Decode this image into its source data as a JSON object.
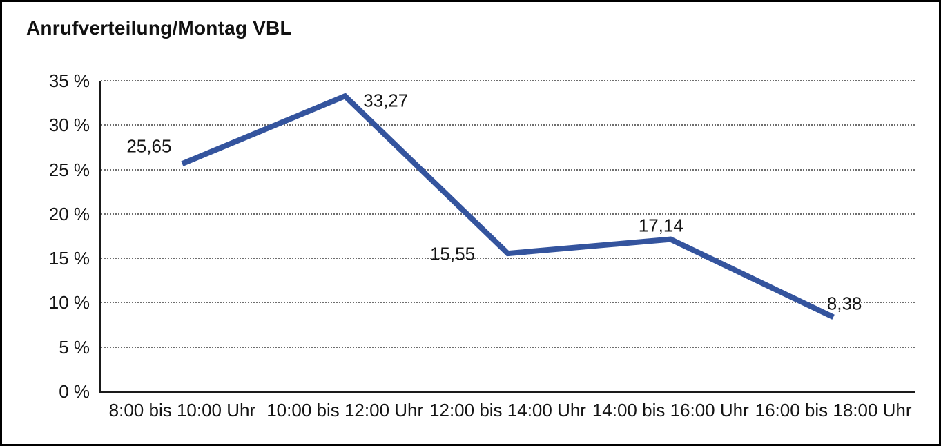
{
  "window": {
    "background": "#ffffff",
    "frame_border_color": "#000000"
  },
  "chart_data": {
    "type": "line",
    "title": "Anrufverteilung/Montag VBL",
    "categories": [
      "8:00 bis 10:00 Uhr",
      "10:00 bis 12:00 Uhr",
      "12:00 bis 14:00 Uhr",
      "14:00 bis 16:00 Uhr",
      "16:00 bis 18:00 Uhr"
    ],
    "series": [
      {
        "name": "Anrufverteilung Montag VBL",
        "values": [
          25.65,
          33.27,
          15.55,
          17.14,
          8.38
        ],
        "value_labels": [
          "25,65",
          "33,27",
          "15,55",
          "17,14",
          "8,38"
        ]
      }
    ],
    "xlabel": "",
    "ylabel": "",
    "ylim": [
      0,
      35
    ],
    "y_step": 5,
    "y_tick_labels": [
      "35 %",
      "30 %",
      "25 %",
      "20 %",
      "15 %",
      "10 %",
      "5 %",
      "0 %"
    ],
    "grid": "horizontal-dotted",
    "legend": "none",
    "colors": {
      "line": "#34549E",
      "grid": "#6e6e6e",
      "axis": "#1a1a1a",
      "text": "#141414"
    }
  }
}
